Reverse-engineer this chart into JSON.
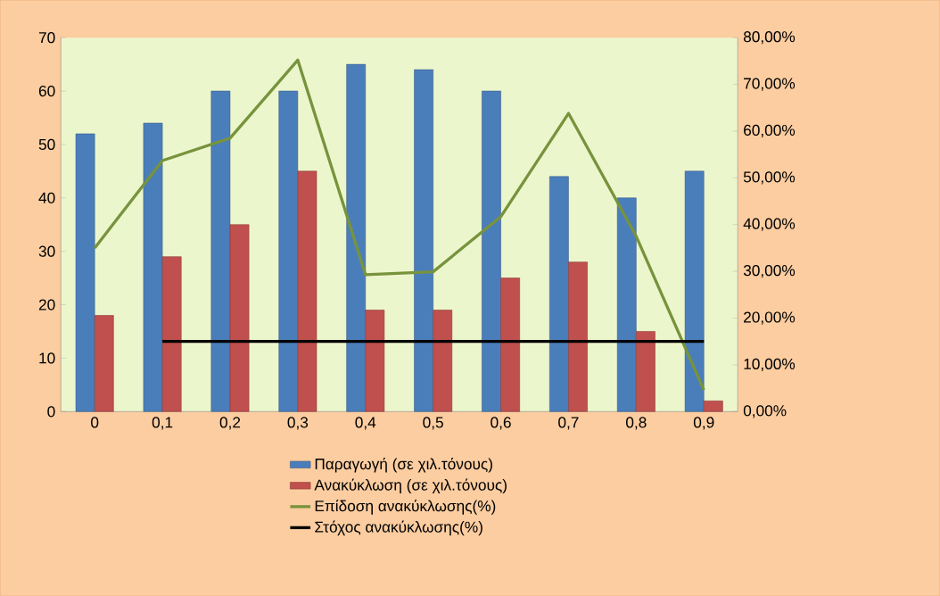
{
  "chart_data": {
    "type": "bar",
    "categories": [
      "0",
      "0,1",
      "0,2",
      "0,3",
      "0,4",
      "0,5",
      "0,6",
      "0,7",
      "0,8",
      "0,9"
    ],
    "series": [
      {
        "name": "Παραγωγή (σε χιλ.τόνους)",
        "color": "#4a7ebb",
        "values": [
          52,
          54,
          60,
          60,
          65,
          64,
          60,
          44,
          40,
          45
        ]
      },
      {
        "name": "Ανακύκλωση (σε χιλ.τόνους)",
        "color": "#c0504d",
        "values": [
          18,
          29,
          35,
          45,
          19,
          19,
          25,
          28,
          15,
          2
        ]
      },
      {
        "name": "Επίδοση ανακύκλωσης(%)",
        "type": "line",
        "axis": "y2",
        "color": "#77933c",
        "values": [
          35,
          53.7,
          58.5,
          75.2,
          29.3,
          29.9,
          41.7,
          63.8,
          37.5,
          4.6
        ]
      },
      {
        "name": "Στόχος ανακύκλωσης(%)",
        "type": "line",
        "axis": "y2",
        "color": "#000000",
        "values": [
          null,
          15,
          15,
          15,
          15,
          15,
          15,
          15,
          15,
          15
        ]
      }
    ],
    "ylim": [
      0,
      70
    ],
    "yticks": [
      0,
      10,
      20,
      30,
      40,
      50,
      60,
      70
    ],
    "y2lim": [
      0,
      80
    ],
    "y2ticks": [
      {
        "value": 0,
        "label": "0,00%"
      },
      {
        "value": 10,
        "label": "10,00%"
      },
      {
        "value": 20,
        "label": "20,00%"
      },
      {
        "value": 30,
        "label": "30,00%"
      },
      {
        "value": 40,
        "label": "40,00%"
      },
      {
        "value": 50,
        "label": "50,00%"
      },
      {
        "value": 60,
        "label": "60,00%"
      },
      {
        "value": 70,
        "label": "70,00%"
      },
      {
        "value": 80,
        "label": "80,00%"
      }
    ],
    "legend": "bottom",
    "marker": "none"
  }
}
